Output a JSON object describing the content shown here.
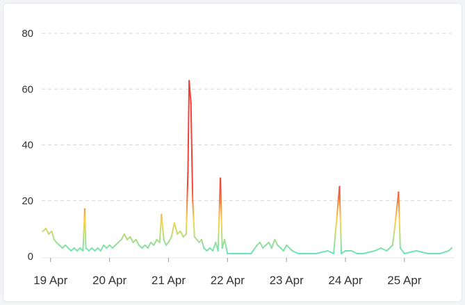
{
  "chart_data": {
    "type": "line",
    "title": "",
    "xlabel": "",
    "ylabel": "",
    "ylim": [
      0,
      80
    ],
    "y_ticks": [
      "0",
      "20",
      "40",
      "60",
      "80"
    ],
    "x_ticks": [
      "19 Apr",
      "20 Apr",
      "21 Apr",
      "22 Apr",
      "23 Apr",
      "24 Apr",
      "25 Apr"
    ],
    "x_tick_days": [
      0,
      1,
      2,
      3,
      4,
      5,
      6
    ],
    "x_range_days": [
      -0.15,
      6.85
    ],
    "grid": true,
    "gradient_colors": [
      "#5ee6c4",
      "#f7d44c",
      "#f0433a"
    ],
    "series": [
      {
        "values": [
          [
            -0.13,
            9
          ],
          [
            -0.08,
            10
          ],
          [
            -0.03,
            8
          ],
          [
            0.02,
            9
          ],
          [
            0.06,
            6
          ],
          [
            0.1,
            5
          ],
          [
            0.15,
            4
          ],
          [
            0.2,
            3
          ],
          [
            0.25,
            4
          ],
          [
            0.3,
            3
          ],
          [
            0.35,
            2
          ],
          [
            0.4,
            3
          ],
          [
            0.45,
            2
          ],
          [
            0.5,
            3
          ],
          [
            0.55,
            2
          ],
          [
            0.58,
            17
          ],
          [
            0.6,
            3
          ],
          [
            0.65,
            2
          ],
          [
            0.7,
            3
          ],
          [
            0.75,
            2
          ],
          [
            0.8,
            3
          ],
          [
            0.85,
            2
          ],
          [
            0.9,
            4
          ],
          [
            0.95,
            3
          ],
          [
            1.0,
            4
          ],
          [
            1.05,
            3
          ],
          [
            1.1,
            4
          ],
          [
            1.15,
            5
          ],
          [
            1.2,
            6
          ],
          [
            1.25,
            8
          ],
          [
            1.3,
            6
          ],
          [
            1.35,
            7
          ],
          [
            1.4,
            5
          ],
          [
            1.45,
            6
          ],
          [
            1.5,
            4
          ],
          [
            1.55,
            3
          ],
          [
            1.6,
            4
          ],
          [
            1.65,
            3
          ],
          [
            1.7,
            5
          ],
          [
            1.75,
            4
          ],
          [
            1.8,
            6
          ],
          [
            1.85,
            5
          ],
          [
            1.88,
            15
          ],
          [
            1.92,
            6
          ],
          [
            1.96,
            4
          ],
          [
            2.0,
            5
          ],
          [
            2.05,
            7
          ],
          [
            2.1,
            12
          ],
          [
            2.15,
            8
          ],
          [
            2.2,
            9
          ],
          [
            2.25,
            7
          ],
          [
            2.3,
            8
          ],
          [
            2.33,
            30
          ],
          [
            2.35,
            63
          ],
          [
            2.38,
            55
          ],
          [
            2.41,
            20
          ],
          [
            2.44,
            7
          ],
          [
            2.48,
            6
          ],
          [
            2.52,
            5
          ],
          [
            2.56,
            6
          ],
          [
            2.6,
            3
          ],
          [
            2.65,
            2
          ],
          [
            2.7,
            3
          ],
          [
            2.75,
            2
          ],
          [
            2.8,
            5
          ],
          [
            2.84,
            2
          ],
          [
            2.88,
            28
          ],
          [
            2.91,
            3
          ],
          [
            2.95,
            6
          ],
          [
            3.0,
            1
          ],
          [
            3.1,
            1
          ],
          [
            3.2,
            1
          ],
          [
            3.3,
            1
          ],
          [
            3.4,
            1
          ],
          [
            3.5,
            4
          ],
          [
            3.55,
            5
          ],
          [
            3.6,
            3
          ],
          [
            3.65,
            4
          ],
          [
            3.7,
            5
          ],
          [
            3.75,
            3
          ],
          [
            3.8,
            6
          ],
          [
            3.85,
            4
          ],
          [
            3.9,
            3
          ],
          [
            3.95,
            2
          ],
          [
            4.0,
            4
          ],
          [
            4.1,
            2
          ],
          [
            4.2,
            1
          ],
          [
            4.3,
            1
          ],
          [
            4.5,
            1
          ],
          [
            4.7,
            2
          ],
          [
            4.8,
            1
          ],
          [
            4.9,
            25
          ],
          [
            4.93,
            1
          ],
          [
            5.0,
            2
          ],
          [
            5.1,
            2
          ],
          [
            5.2,
            1
          ],
          [
            5.3,
            1
          ],
          [
            5.5,
            2
          ],
          [
            5.6,
            3
          ],
          [
            5.7,
            2
          ],
          [
            5.8,
            4
          ],
          [
            5.85,
            13
          ],
          [
            5.9,
            23
          ],
          [
            5.93,
            3
          ],
          [
            6.0,
            1
          ],
          [
            6.2,
            2
          ],
          [
            6.4,
            1
          ],
          [
            6.6,
            1
          ],
          [
            6.75,
            2
          ],
          [
            6.8,
            3
          ]
        ]
      }
    ]
  }
}
